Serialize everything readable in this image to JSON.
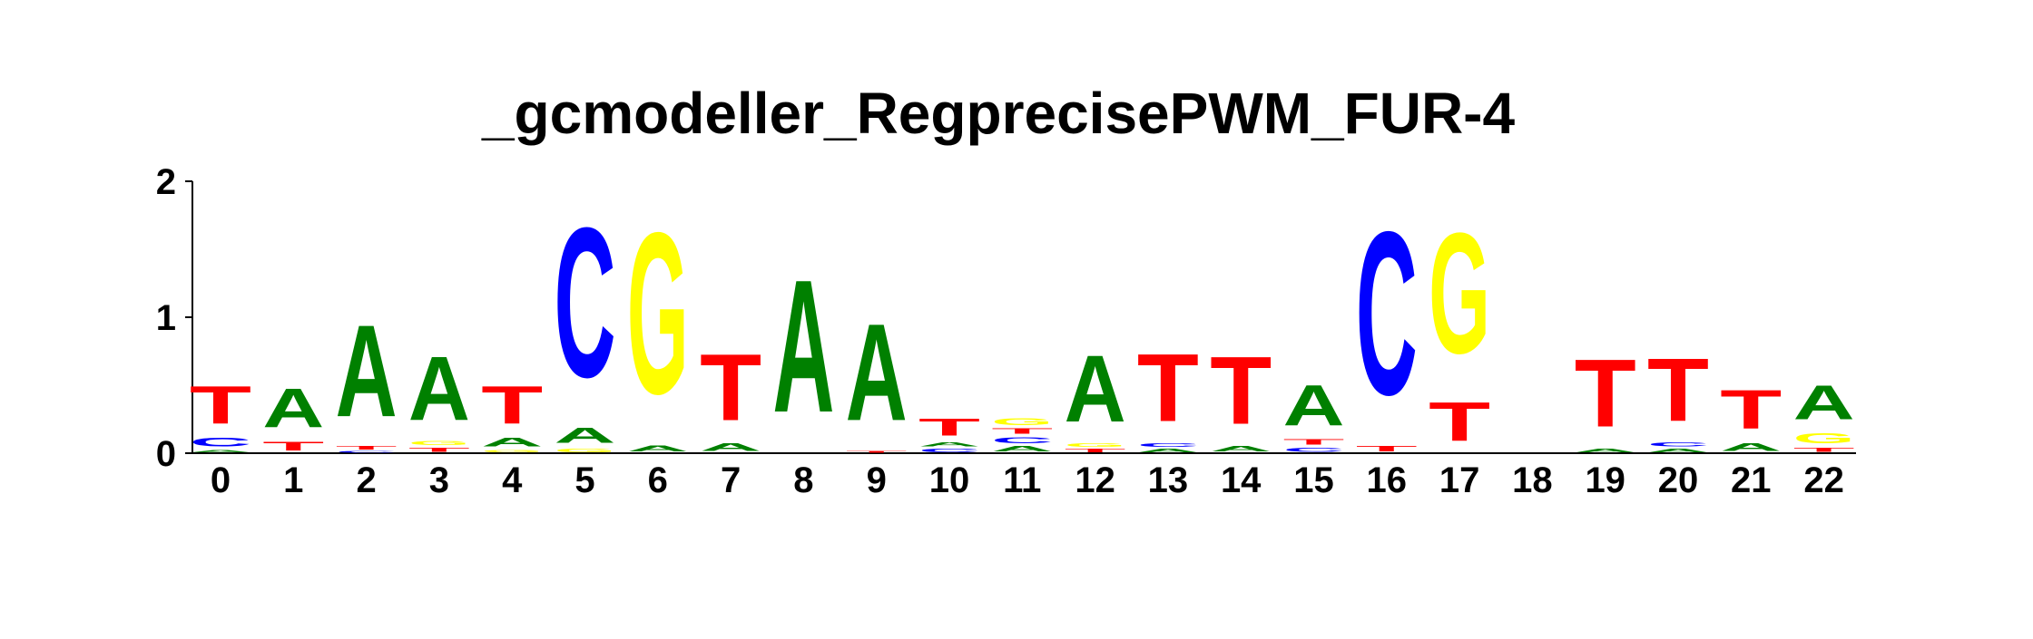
{
  "chart_data": {
    "type": "sequence-logo",
    "title": "_gcmodeller_RegprecisePWM_FUR-4",
    "y_ticks": [
      0,
      1,
      2
    ],
    "ylim": [
      0,
      2
    ],
    "colors": {
      "A": "#008000",
      "C": "#0000ff",
      "G": "#ffff00",
      "T": "#ff0000"
    },
    "positions": [
      {
        "pos": "0",
        "letters": [
          {
            "base": "A",
            "height": 0.03
          },
          {
            "base": "C",
            "height": 0.1
          },
          {
            "base": "T",
            "height": 0.44
          }
        ]
      },
      {
        "pos": "1",
        "letters": [
          {
            "base": "T",
            "height": 0.1
          },
          {
            "base": "A",
            "height": 0.46
          }
        ]
      },
      {
        "pos": "2",
        "letters": [
          {
            "base": "C",
            "height": 0.02
          },
          {
            "base": "T",
            "height": 0.04
          },
          {
            "base": "A",
            "height": 1.08
          }
        ]
      },
      {
        "pos": "3",
        "letters": [
          {
            "base": "T",
            "height": 0.05
          },
          {
            "base": "G",
            "height": 0.05
          },
          {
            "base": "A",
            "height": 0.75
          }
        ]
      },
      {
        "pos": "4",
        "letters": [
          {
            "base": "G",
            "height": 0.03
          },
          {
            "base": "A",
            "height": 0.1
          },
          {
            "base": "T",
            "height": 0.44
          }
        ]
      },
      {
        "pos": "5",
        "letters": [
          {
            "base": "G",
            "height": 0.04
          },
          {
            "base": "A",
            "height": 0.18
          },
          {
            "base": "C",
            "height": 1.76
          }
        ]
      },
      {
        "pos": "6",
        "letters": [
          {
            "base": "A",
            "height": 0.07
          },
          {
            "base": "G",
            "height": 1.9
          }
        ]
      },
      {
        "pos": "7",
        "letters": [
          {
            "base": "A",
            "height": 0.09
          },
          {
            "base": "T",
            "height": 0.78
          }
        ]
      },
      {
        "pos": "8",
        "letters": [
          {
            "base": "A",
            "height": 1.56
          }
        ]
      },
      {
        "pos": "9",
        "letters": [
          {
            "base": "T",
            "height": 0.02
          },
          {
            "base": "A",
            "height": 1.14
          }
        ]
      },
      {
        "pos": "10",
        "letters": [
          {
            "base": "C",
            "height": 0.04
          },
          {
            "base": "A",
            "height": 0.05
          },
          {
            "base": "T",
            "height": 0.2
          }
        ]
      },
      {
        "pos": "11",
        "letters": [
          {
            "base": "A",
            "height": 0.06
          },
          {
            "base": "C",
            "height": 0.07
          },
          {
            "base": "T",
            "height": 0.06
          },
          {
            "base": "G",
            "height": 0.08
          }
        ]
      },
      {
        "pos": "12",
        "letters": [
          {
            "base": "T",
            "height": 0.04
          },
          {
            "base": "G",
            "height": 0.04
          },
          {
            "base": "A",
            "height": 0.78
          }
        ]
      },
      {
        "pos": "13",
        "letters": [
          {
            "base": "A",
            "height": 0.04
          },
          {
            "base": "C",
            "height": 0.04
          },
          {
            "base": "T",
            "height": 0.8
          }
        ]
      },
      {
        "pos": "14",
        "letters": [
          {
            "base": "A",
            "height": 0.06
          },
          {
            "base": "T",
            "height": 0.8
          }
        ]
      },
      {
        "pos": "15",
        "letters": [
          {
            "base": "C",
            "height": 0.05
          },
          {
            "base": "T",
            "height": 0.06
          },
          {
            "base": "A",
            "height": 0.48
          }
        ]
      },
      {
        "pos": "16",
        "letters": [
          {
            "base": "T",
            "height": 0.06
          },
          {
            "base": "C",
            "height": 1.92
          }
        ]
      },
      {
        "pos": "17",
        "letters": [
          {
            "base": "T",
            "height": 0.46
          },
          {
            "base": "G",
            "height": 1.42
          }
        ]
      },
      {
        "pos": "18",
        "letters": []
      },
      {
        "pos": "19",
        "letters": [
          {
            "base": "A",
            "height": 0.04
          },
          {
            "base": "T",
            "height": 0.8
          }
        ]
      },
      {
        "pos": "20",
        "letters": [
          {
            "base": "A",
            "height": 0.04
          },
          {
            "base": "C",
            "height": 0.05
          },
          {
            "base": "T",
            "height": 0.74
          }
        ]
      },
      {
        "pos": "21",
        "letters": [
          {
            "base": "A",
            "height": 0.09
          },
          {
            "base": "T",
            "height": 0.46
          }
        ]
      },
      {
        "pos": "22",
        "letters": [
          {
            "base": "T",
            "height": 0.05
          },
          {
            "base": "G",
            "height": 0.12
          },
          {
            "base": "A",
            "height": 0.4
          }
        ]
      }
    ]
  }
}
